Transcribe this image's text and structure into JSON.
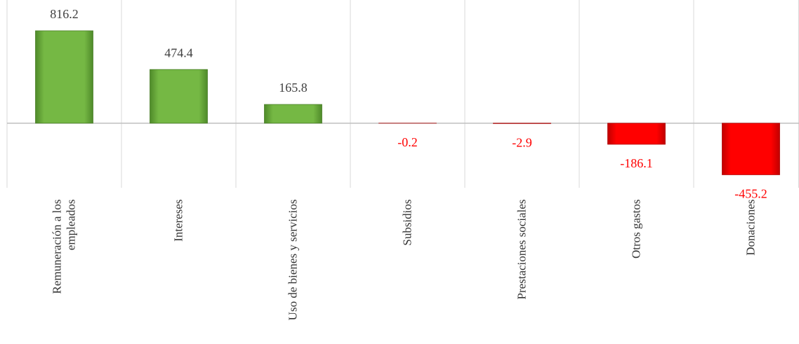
{
  "chart_data": {
    "type": "bar",
    "categories": [
      "Remuneración a los empleados",
      "Intereses",
      "Uso de bienes y servicios",
      "Subsidios",
      "Prestaciones sociales",
      "Otros gastos",
      "Donaciones"
    ],
    "values": [
      816.2,
      474.4,
      165.8,
      -0.2,
      -2.9,
      -186.1,
      -455.2
    ],
    "positive_color": "#6aaa3a",
    "negative_color": "#ff0000",
    "ylim": [
      -570,
      1088
    ]
  }
}
